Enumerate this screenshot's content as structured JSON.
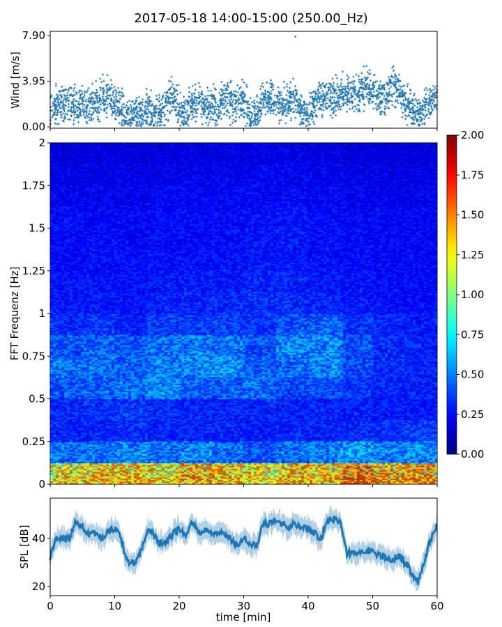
{
  "title": "2017-05-18 14:00-15:00 (250.00_Hz)",
  "chart_data": [
    {
      "type": "scatter",
      "name_hint": "wind",
      "ylabel": "Wind [m/s]",
      "xlabel": "",
      "xlim": [
        0,
        60
      ],
      "ylim": [
        -0.12,
        8.26
      ],
      "yticks": [
        "0.00",
        "3.95",
        "7.90"
      ],
      "marker": "+",
      "color": "#1f77b4",
      "x": [
        0,
        1,
        2,
        3,
        4,
        5,
        6,
        7,
        8,
        9,
        10,
        11,
        12,
        13,
        14,
        15,
        16,
        17,
        18,
        19,
        20,
        21,
        22,
        23,
        24,
        25,
        26,
        27,
        28,
        29,
        30,
        31,
        32,
        33,
        34,
        35,
        36,
        37,
        38,
        39,
        40,
        41,
        42,
        43,
        44,
        45,
        46,
        47,
        48,
        49,
        50,
        51,
        52,
        53,
        54,
        55,
        56,
        57,
        58,
        59,
        60
      ],
      "values": [
        1.5,
        1.8,
        2.0,
        1.8,
        2.0,
        1.8,
        1.6,
        2.0,
        2.5,
        2.6,
        1.8,
        1.7,
        0.8,
        1.2,
        1.0,
        1.5,
        1.3,
        1.2,
        2.0,
        2.5,
        1.5,
        1.0,
        2.0,
        2.2,
        1.5,
        1.8,
        1.7,
        2.6,
        2.2,
        1.7,
        2.4,
        1.2,
        0.8,
        2.5,
        2.4,
        2.2,
        1.8,
        2.2,
        2.5,
        1.2,
        1.4,
        2.0,
        2.3,
        2.6,
        2.5,
        3.0,
        3.0,
        2.8,
        2.8,
        3.5,
        3.0,
        2.5,
        2.5,
        3.5,
        3.2,
        2.2,
        1.6,
        0.8,
        1.6,
        2.3,
        2.5
      ],
      "peak": {
        "x": 38,
        "y": 7.8
      }
    },
    {
      "type": "heatmap",
      "ylabel": "FFT Frequenz [Hz]",
      "xlim": [
        0,
        60
      ],
      "ylim": [
        0,
        2
      ],
      "yticks": [
        "0",
        "0.25",
        "0.5",
        "0.75",
        "1",
        "1.25",
        "1.5",
        "1.75",
        "2"
      ],
      "colormap": "jet",
      "vmin": 0,
      "vmax": 2,
      "colorbar_ticks": [
        "0.00",
        "0.25",
        "0.50",
        "0.75",
        "1.00",
        "1.25",
        "1.50",
        "1.75",
        "2.00"
      ],
      "time_bins": [
        0,
        5,
        10,
        15,
        20,
        25,
        30,
        35,
        40,
        45,
        50,
        55
      ],
      "freq_bins": [
        0,
        0.125,
        0.25,
        0.375,
        0.5,
        0.625,
        0.75,
        0.875,
        1,
        1.125,
        1.25,
        1.375,
        1.5,
        1.625,
        1.75,
        1.875
      ],
      "values": [
        [
          1.2,
          1.3,
          1.3,
          1.2,
          1.4,
          1.3,
          1.2,
          1.3,
          1.3,
          1.5,
          1.4,
          1.4
        ],
        [
          0.45,
          0.45,
          0.5,
          0.45,
          0.5,
          0.45,
          0.4,
          0.45,
          0.5,
          0.55,
          0.5,
          0.5
        ],
        [
          0.3,
          0.3,
          0.32,
          0.3,
          0.3,
          0.3,
          0.28,
          0.3,
          0.3,
          0.32,
          0.32,
          0.35
        ],
        [
          0.3,
          0.32,
          0.35,
          0.32,
          0.3,
          0.3,
          0.3,
          0.3,
          0.3,
          0.3,
          0.28,
          0.28
        ],
        [
          0.4,
          0.42,
          0.45,
          0.5,
          0.42,
          0.42,
          0.45,
          0.38,
          0.38,
          0.33,
          0.3,
          0.3
        ],
        [
          0.45,
          0.45,
          0.42,
          0.48,
          0.5,
          0.52,
          0.42,
          0.45,
          0.5,
          0.38,
          0.32,
          0.3
        ],
        [
          0.4,
          0.42,
          0.4,
          0.45,
          0.48,
          0.45,
          0.4,
          0.5,
          0.5,
          0.38,
          0.32,
          0.3
        ],
        [
          0.32,
          0.34,
          0.3,
          0.35,
          0.35,
          0.35,
          0.33,
          0.4,
          0.42,
          0.33,
          0.3,
          0.28
        ],
        [
          0.28,
          0.28,
          0.27,
          0.3,
          0.3,
          0.3,
          0.32,
          0.32,
          0.3,
          0.28,
          0.26,
          0.25
        ],
        [
          0.27,
          0.27,
          0.26,
          0.28,
          0.28,
          0.28,
          0.3,
          0.3,
          0.28,
          0.27,
          0.25,
          0.25
        ],
        [
          0.25,
          0.25,
          0.25,
          0.26,
          0.26,
          0.27,
          0.28,
          0.28,
          0.26,
          0.25,
          0.24,
          0.24
        ],
        [
          0.25,
          0.25,
          0.24,
          0.25,
          0.25,
          0.26,
          0.27,
          0.28,
          0.26,
          0.25,
          0.24,
          0.23
        ],
        [
          0.25,
          0.24,
          0.24,
          0.25,
          0.25,
          0.25,
          0.26,
          0.27,
          0.25,
          0.24,
          0.23,
          0.23
        ],
        [
          0.22,
          0.22,
          0.22,
          0.23,
          0.23,
          0.23,
          0.24,
          0.24,
          0.23,
          0.22,
          0.21,
          0.21
        ],
        [
          0.2,
          0.2,
          0.2,
          0.2,
          0.21,
          0.21,
          0.22,
          0.22,
          0.21,
          0.2,
          0.2,
          0.2
        ],
        [
          0.18,
          0.18,
          0.18,
          0.18,
          0.19,
          0.19,
          0.2,
          0.2,
          0.19,
          0.18,
          0.18,
          0.18
        ]
      ]
    },
    {
      "type": "line",
      "xlabel": "time [min]",
      "ylabel": "SPL [dB]",
      "xlim": [
        0,
        60
      ],
      "ylim": [
        16.2,
        56.8
      ],
      "xticks": [
        "0",
        "10",
        "20",
        "30",
        "40",
        "50",
        "60"
      ],
      "yticks": [
        "20",
        "40"
      ],
      "color": "#1f77b4",
      "x": [
        0,
        1,
        2,
        3,
        4,
        5,
        6,
        7,
        8,
        9,
        10,
        11,
        12,
        13,
        14,
        15,
        16,
        17,
        18,
        19,
        20,
        21,
        22,
        23,
        24,
        25,
        26,
        27,
        28,
        29,
        30,
        31,
        32,
        33,
        34,
        35,
        36,
        37,
        38,
        39,
        40,
        41,
        42,
        43,
        44,
        45,
        46,
        47,
        48,
        49,
        50,
        51,
        52,
        53,
        54,
        55,
        56,
        57,
        58,
        59,
        60
      ],
      "values": [
        32,
        40,
        40,
        40,
        47,
        45,
        42,
        42,
        40,
        43,
        44,
        40,
        30,
        30,
        34,
        43,
        42,
        38,
        38,
        42,
        44,
        42,
        46,
        43,
        43,
        43,
        42,
        42,
        40,
        37,
        40,
        37,
        37,
        46,
        46,
        47,
        46,
        45,
        46,
        44,
        44,
        42,
        40,
        47,
        48,
        47,
        34,
        34,
        34,
        35,
        35,
        33,
        32,
        31,
        33,
        30,
        26,
        22,
        30,
        40,
        46
      ]
    }
  ]
}
